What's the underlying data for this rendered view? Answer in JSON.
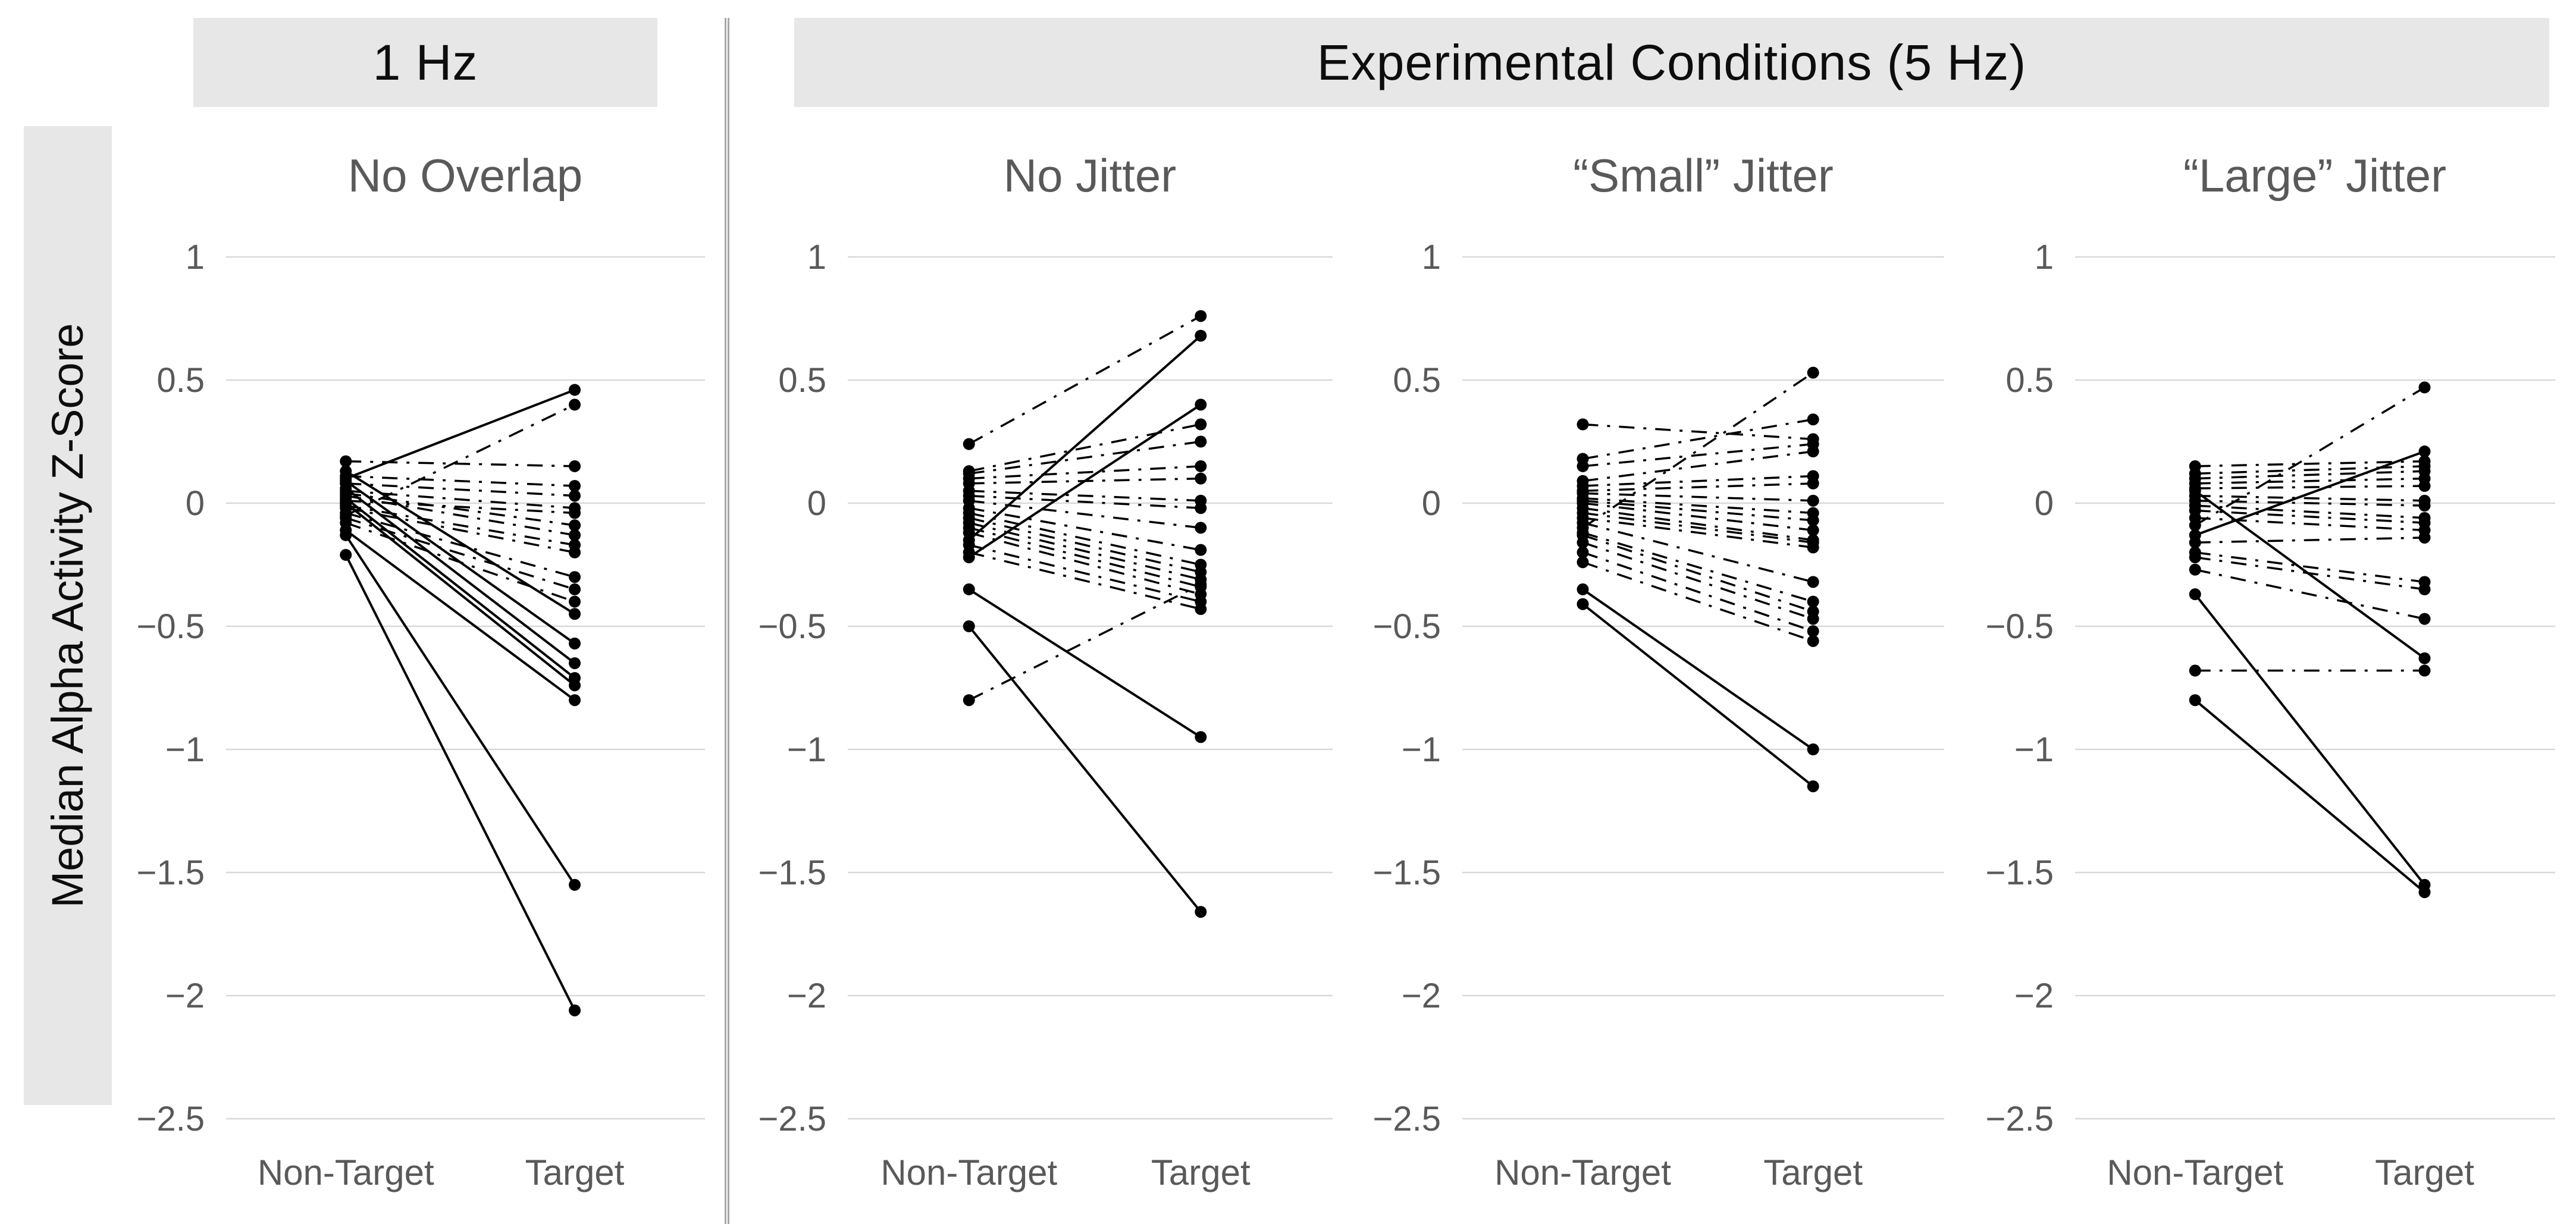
{
  "figure": {
    "ylabel": "Median Alpha Activity Z-Score",
    "group_headers": [
      {
        "label": "1 Hz"
      },
      {
        "label": "Experimental Conditions (5 Hz)"
      }
    ]
  },
  "axis": {
    "categories": [
      "Non-Target",
      "Target"
    ],
    "yticks": [
      1,
      0.5,
      0,
      -0.5,
      -1,
      -1.5,
      -2,
      -2.5
    ],
    "ytick_labels": [
      "1",
      "0.5",
      "0",
      "−0.5",
      "−1",
      "−1.5",
      "−2",
      "−2.5"
    ],
    "ylim": [
      -2.5,
      1
    ],
    "grid": "on"
  },
  "colors": {
    "band": "#e7e7e7",
    "grid": "#d9d9d9",
    "tick_text": "#595959",
    "title_text": "#595959",
    "header_text": "#0d0d0d",
    "data": "#000000",
    "separator": "#a8a8a8"
  },
  "chart_data": [
    {
      "type": "paired-line",
      "group": "1 Hz",
      "title": "No Overlap",
      "categories": [
        "Non-Target",
        "Target"
      ],
      "ylabel": "Median Alpha Activity Z-Score",
      "ylim": [
        -2.5,
        1
      ],
      "subjects": [
        {
          "non_target": 0.1,
          "target": 0.46,
          "line": "solid"
        },
        {
          "non_target": -0.05,
          "target": 0.4,
          "line": "dashdot"
        },
        {
          "non_target": 0.17,
          "target": 0.15,
          "line": "dashdot"
        },
        {
          "non_target": 0.13,
          "target": -0.45,
          "line": "solid"
        },
        {
          "non_target": 0.11,
          "target": 0.07,
          "line": "dashdot"
        },
        {
          "non_target": 0.09,
          "target": -0.57,
          "line": "solid"
        },
        {
          "non_target": 0.08,
          "target": 0.03,
          "line": "dashdot"
        },
        {
          "non_target": 0.06,
          "target": -0.65,
          "line": "solid"
        },
        {
          "non_target": 0.05,
          "target": -0.02,
          "line": "dashdot"
        },
        {
          "non_target": 0.04,
          "target": -0.09,
          "line": "dashdot"
        },
        {
          "non_target": 0.03,
          "target": -0.13,
          "line": "dashdot"
        },
        {
          "non_target": 0.02,
          "target": -0.71,
          "line": "solid"
        },
        {
          "non_target": 0.01,
          "target": -0.04,
          "line": "dashdot"
        },
        {
          "non_target": 0.0,
          "target": -0.74,
          "line": "solid"
        },
        {
          "non_target": -0.01,
          "target": -0.17,
          "line": "dashdot"
        },
        {
          "non_target": -0.02,
          "target": -0.2,
          "line": "dashdot"
        },
        {
          "non_target": -0.04,
          "target": -0.3,
          "line": "dashdot"
        },
        {
          "non_target": -0.06,
          "target": -0.35,
          "line": "dashdot"
        },
        {
          "non_target": -0.08,
          "target": -0.4,
          "line": "dashdot"
        },
        {
          "non_target": -0.11,
          "target": -0.8,
          "line": "solid"
        },
        {
          "non_target": -0.13,
          "target": -1.55,
          "line": "solid"
        },
        {
          "non_target": -0.21,
          "target": -2.06,
          "line": "solid"
        }
      ]
    },
    {
      "type": "paired-line",
      "group": "Experimental Conditions (5 Hz)",
      "title": "No Jitter",
      "categories": [
        "Non-Target",
        "Target"
      ],
      "ylabel": "Median Alpha Activity Z-Score",
      "ylim": [
        -2.5,
        1
      ],
      "subjects": [
        {
          "non_target": 0.24,
          "target": 0.76,
          "line": "dashdot"
        },
        {
          "non_target": -0.15,
          "target": 0.68,
          "line": "solid"
        },
        {
          "non_target": -0.22,
          "target": 0.4,
          "line": "solid"
        },
        {
          "non_target": 0.13,
          "target": 0.32,
          "line": "dashdot"
        },
        {
          "non_target": 0.12,
          "target": 0.25,
          "line": "dashdot"
        },
        {
          "non_target": 0.1,
          "target": 0.15,
          "line": "dashdot"
        },
        {
          "non_target": 0.08,
          "target": 0.1,
          "line": "dashdot"
        },
        {
          "non_target": 0.05,
          "target": 0.01,
          "line": "dashdot"
        },
        {
          "non_target": 0.03,
          "target": -0.02,
          "line": "dashdot"
        },
        {
          "non_target": 0.01,
          "target": -0.1,
          "line": "dashdot"
        },
        {
          "non_target": -0.02,
          "target": -0.19,
          "line": "dashdot"
        },
        {
          "non_target": -0.04,
          "target": -0.25,
          "line": "dashdot"
        },
        {
          "non_target": -0.06,
          "target": -0.28,
          "line": "dashdot"
        },
        {
          "non_target": -0.08,
          "target": -0.31,
          "line": "dashdot"
        },
        {
          "non_target": -0.1,
          "target": -0.34,
          "line": "dashdot"
        },
        {
          "non_target": -0.12,
          "target": -0.37,
          "line": "dashdot"
        },
        {
          "non_target": -0.17,
          "target": -0.4,
          "line": "dashdot"
        },
        {
          "non_target": -0.2,
          "target": -0.43,
          "line": "dashdot"
        },
        {
          "non_target": -0.35,
          "target": -0.95,
          "line": "solid"
        },
        {
          "non_target": -0.5,
          "target": -1.66,
          "line": "solid"
        },
        {
          "non_target": -0.8,
          "target": -0.33,
          "line": "dashdot"
        }
      ]
    },
    {
      "type": "paired-line",
      "group": "Experimental Conditions (5 Hz)",
      "title": "“Small” Jitter",
      "categories": [
        "Non-Target",
        "Target"
      ],
      "ylabel": "Median Alpha Activity Z-Score",
      "ylim": [
        -2.5,
        1
      ],
      "subjects": [
        {
          "non_target": 0.32,
          "target": 0.26,
          "line": "dashdot"
        },
        {
          "non_target": 0.18,
          "target": 0.34,
          "line": "dashdot"
        },
        {
          "non_target": 0.15,
          "target": 0.24,
          "line": "dashdot"
        },
        {
          "non_target": 0.09,
          "target": 0.21,
          "line": "dashdot"
        },
        {
          "non_target": 0.07,
          "target": 0.11,
          "line": "dashdot"
        },
        {
          "non_target": 0.05,
          "target": 0.08,
          "line": "dashdot"
        },
        {
          "non_target": 0.04,
          "target": 0.01,
          "line": "dashdot"
        },
        {
          "non_target": 0.02,
          "target": -0.04,
          "line": "dashdot"
        },
        {
          "non_target": 0.01,
          "target": -0.07,
          "line": "dashdot"
        },
        {
          "non_target": 0.0,
          "target": -0.11,
          "line": "dashdot"
        },
        {
          "non_target": -0.02,
          "target": -0.15,
          "line": "dashdot"
        },
        {
          "non_target": -0.04,
          "target": -0.16,
          "line": "dashdot"
        },
        {
          "non_target": -0.06,
          "target": -0.18,
          "line": "dashdot"
        },
        {
          "non_target": -0.08,
          "target": -0.32,
          "line": "dashdot"
        },
        {
          "non_target": -0.1,
          "target": 0.53,
          "line": "dashdot"
        },
        {
          "non_target": -0.12,
          "target": -0.4,
          "line": "dashdot"
        },
        {
          "non_target": -0.13,
          "target": -0.44,
          "line": "dashdot"
        },
        {
          "non_target": -0.16,
          "target": -0.47,
          "line": "dashdot"
        },
        {
          "non_target": -0.2,
          "target": -0.52,
          "line": "dashdot"
        },
        {
          "non_target": -0.24,
          "target": -0.56,
          "line": "dashdot"
        },
        {
          "non_target": -0.35,
          "target": -1.0,
          "line": "solid"
        },
        {
          "non_target": -0.41,
          "target": -1.15,
          "line": "solid"
        }
      ]
    },
    {
      "type": "paired-line",
      "group": "Experimental Conditions (5 Hz)",
      "title": "“Large” Jitter",
      "categories": [
        "Non-Target",
        "Target"
      ],
      "ylabel": "Median Alpha Activity Z-Score",
      "ylim": [
        -2.5,
        1
      ],
      "subjects": [
        {
          "non_target": -0.09,
          "target": 0.47,
          "line": "dashdot"
        },
        {
          "non_target": -0.13,
          "target": 0.21,
          "line": "solid"
        },
        {
          "non_target": 0.05,
          "target": -0.63,
          "line": "solid"
        },
        {
          "non_target": 0.15,
          "target": 0.17,
          "line": "dashdot"
        },
        {
          "non_target": 0.12,
          "target": 0.15,
          "line": "dashdot"
        },
        {
          "non_target": 0.1,
          "target": 0.13,
          "line": "dashdot"
        },
        {
          "non_target": 0.08,
          "target": 0.1,
          "line": "dashdot"
        },
        {
          "non_target": 0.06,
          "target": 0.07,
          "line": "dashdot"
        },
        {
          "non_target": 0.03,
          "target": 0.01,
          "line": "dashdot"
        },
        {
          "non_target": 0.01,
          "target": -0.01,
          "line": "dashdot"
        },
        {
          "non_target": -0.01,
          "target": -0.06,
          "line": "dashdot"
        },
        {
          "non_target": -0.03,
          "target": -0.08,
          "line": "dashdot"
        },
        {
          "non_target": -0.06,
          "target": -0.11,
          "line": "dashdot"
        },
        {
          "non_target": -0.16,
          "target": -0.14,
          "line": "dashdot"
        },
        {
          "non_target": -0.2,
          "target": -0.32,
          "line": "dashdot"
        },
        {
          "non_target": -0.22,
          "target": -0.35,
          "line": "dashdot"
        },
        {
          "non_target": -0.27,
          "target": -0.47,
          "line": "dashdot"
        },
        {
          "non_target": -0.37,
          "target": -1.55,
          "line": "solid"
        },
        {
          "non_target": -0.68,
          "target": -0.68,
          "line": "dashdot"
        },
        {
          "non_target": -0.8,
          "target": -1.58,
          "line": "solid"
        }
      ]
    }
  ]
}
